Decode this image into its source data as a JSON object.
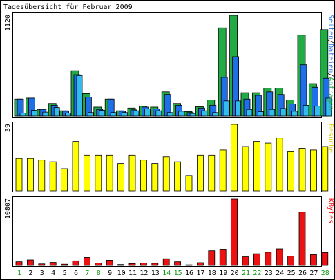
{
  "chart_data": {
    "type": "bar",
    "title": "Tagesübersicht für Februar 2009",
    "colors": {
      "background": "#ffffff",
      "frame": "#000000",
      "text": "#000000",
      "weekend_day": "#119911",
      "pages": "#22aa44",
      "files": "#1f6fe8",
      "requests": "#33bbee",
      "visits": "#ffff00",
      "kbytes": "#ee1111"
    },
    "x": [
      "1",
      "2",
      "3",
      "4",
      "5",
      "6",
      "7",
      "8",
      "9",
      "10",
      "11",
      "12",
      "13",
      "14",
      "15",
      "16",
      "17",
      "18",
      "19",
      "20",
      "21",
      "22",
      "23",
      "24",
      "25",
      "26",
      "27",
      "28"
    ],
    "weekend_days": [
      "1",
      "7",
      "8",
      "14",
      "15",
      "21",
      "22",
      "28"
    ],
    "panels": [
      {
        "id": "hits",
        "ymax_label": "1120",
        "ymax": 1120,
        "right_label_parts": [
          {
            "text": "Seiten",
            "color": "#1f6fe8"
          },
          {
            "text": "/",
            "color": "#000000"
          },
          {
            "text": "Dateien",
            "color": "#1f6fe8"
          },
          {
            "text": "/",
            "color": "#000000"
          },
          {
            "text": "Anfragen",
            "color": "#22aa44"
          }
        ],
        "series": [
          {
            "name": "Anfragen",
            "color": "#22aa44",
            "values": [
              190,
              200,
              75,
              140,
              60,
              505,
              250,
              100,
              190,
              60,
              90,
              110,
              100,
              270,
              140,
              50,
              105,
              180,
              980,
              1120,
              260,
              260,
              310,
              310,
              180,
              900,
              360,
              960
            ]
          },
          {
            "name": "Dateien",
            "color": "#1f6fe8",
            "values": [
              190,
              200,
              75,
              120,
              55,
              460,
              210,
              75,
              190,
              55,
              70,
              100,
              80,
              240,
              120,
              40,
              90,
              120,
              430,
              660,
              190,
              230,
              270,
              240,
              135,
              570,
              320,
              420
            ]
          },
          {
            "name": "Seiten",
            "color": "#33bbee",
            "values": [
              35,
              65,
              45,
              95,
              35,
              450,
              40,
              65,
              40,
              40,
              60,
              80,
              60,
              40,
              55,
              30,
              60,
              40,
              170,
              170,
              75,
              50,
              75,
              85,
              55,
              120,
              110,
              200
            ]
          }
        ]
      },
      {
        "id": "visits",
        "ymax_label": "39",
        "ymax": 39,
        "right_label_parts": [
          {
            "text": "Besuche",
            "color": "#ddcc00"
          }
        ],
        "series": [
          {
            "name": "Besuche",
            "color": "#ffff00",
            "values": [
              19,
              19,
              18,
              17,
              13,
              29,
              21,
              21,
              21,
              16,
              21,
              18,
              16,
              20,
              17,
              9,
              21,
              21,
              24,
              39,
              26,
              29,
              28,
              31,
              23,
              25,
              24,
              26
            ]
          }
        ]
      },
      {
        "id": "kbytes",
        "ymax_label": "10807",
        "ymax": 10807,
        "right_label_parts": [
          {
            "text": "KBytes",
            "color": "#ee1111"
          }
        ],
        "series": [
          {
            "name": "KBytes",
            "color": "#ee1111",
            "values": [
              600,
              900,
              250,
              500,
              200,
              750,
              1300,
              400,
              850,
              150,
              300,
              400,
              350,
              1100,
              600,
              100,
              450,
              2400,
              2650,
              10807,
              1400,
              1900,
              2150,
              2700,
              1500,
              8700,
              1750,
              2100
            ]
          }
        ]
      }
    ]
  }
}
